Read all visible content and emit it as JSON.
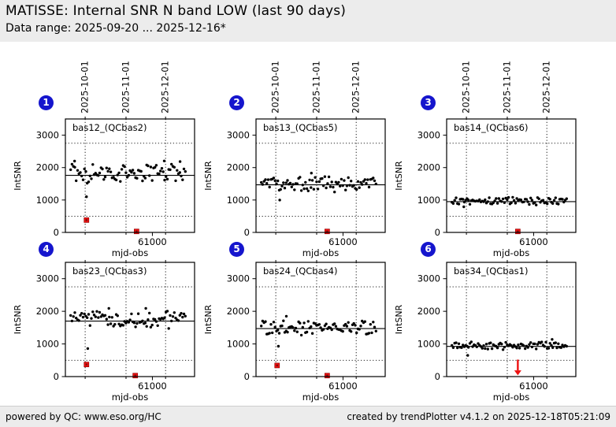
{
  "header": {
    "title": "MATISSE: Internal SNR N band LOW (last 90 days)",
    "subtitle": "Data range: 2025-09-20 ... 2025-12-16*"
  },
  "footer": {
    "left": "powered by QC: www.eso.org/HC",
    "right": "created by trendPlotter v4.1.2 on 2025-12-18T05:21:09"
  },
  "colors": {
    "page_bg": "#ffffff",
    "band_bg": "#ececec",
    "badge_blue": "#1515cd",
    "point_black": "#000000",
    "outlier_red": "#ee1111",
    "outlier_red_dark": "#7a1010",
    "axis_black": "#000000"
  },
  "chart_data": {
    "type": "scatter",
    "title": "MATISSE: Internal SNR N band LOW (last 90 days)",
    "x_axis": {
      "label": "mjd-obs",
      "domain": [
        60934,
        61032
      ],
      "tick_value": 61000,
      "tick_label": "61000",
      "data_start_mjd": 60938,
      "data_end_mjd": 61025,
      "month_lines": [
        {
          "mjd": 60949,
          "label": "2025-10-01"
        },
        {
          "mjd": 60980,
          "label": "2025-11-01"
        },
        {
          "mjd": 61010,
          "label": "2025-12-01"
        }
      ]
    },
    "y_axis": {
      "label": "IntSNR",
      "domain": [
        0,
        3500
      ],
      "ticks": [
        0,
        1000,
        2000,
        3000
      ]
    },
    "threshold_lines": [
      500,
      2750
    ],
    "gridstyle": "dotted vertical month lines, dotted horizontal thresholds, solid mean line",
    "jitter_profile": [
      0.42,
      -0.31,
      0.85,
      0.1,
      -0.66,
      0.25,
      -0.12,
      0.95,
      -0.48,
      0.05,
      0.61,
      -0.22,
      -0.88,
      0.33,
      0.74,
      -0.57,
      0.02,
      0.49,
      -0.39,
      -0.75,
      0.18,
      0.66,
      -0.09,
      0.29,
      -0.52,
      0.88,
      -0.18,
      0.38,
      -0.64,
      0.12,
      0.55,
      -0.28,
      0.79,
      -0.45,
      0.07,
      0.35,
      -0.71,
      0.22,
      0.59,
      -0.15,
      0.92,
      -0.35,
      0.03,
      0.46,
      -0.58,
      0.27,
      0.68,
      -0.05,
      -0.41,
      0.15,
      0.82,
      -0.25,
      0.51,
      -0.62,
      0.09,
      0.37,
      -0.19,
      0.72,
      -0.49,
      0.21,
      0.58,
      -0.08,
      0.31,
      -0.55,
      0.13,
      0.44,
      -0.36,
      0.65,
      -0.14,
      0.26,
      0.5,
      -0.3
    ],
    "n_points": 84,
    "plots": [
      {
        "index": "1",
        "title": "bas12_(QCbas2)",
        "mean_line": 1760,
        "scatter_center": 1800,
        "scatter_amplitude": 320,
        "stride": 7,
        "phase": 0,
        "extra_points": [
          [
            60950,
            1100
          ],
          [
            60941,
            2200
          ],
          [
            61009,
            2205
          ],
          [
            61021,
            2185
          ]
        ],
        "red_outliers": [
          [
            60950,
            380
          ],
          [
            60988,
            30
          ]
        ]
      },
      {
        "index": "2",
        "title": "bas13_(QCbas5)",
        "mean_line": 1470,
        "scatter_center": 1475,
        "scatter_amplitude": 260,
        "stride": 11,
        "phase": 5,
        "extra_points": [
          [
            60952,
            1000
          ],
          [
            60976,
            1830
          ]
        ],
        "red_outliers": [
          [
            60988,
            30
          ]
        ]
      },
      {
        "index": "3",
        "title": "bas14_(QCbas6)",
        "mean_line": 950,
        "scatter_center": 960,
        "scatter_amplitude": 130,
        "stride": 13,
        "phase": 11,
        "extra_points": [
          [
            60947,
            790
          ]
        ],
        "red_outliers": [
          [
            60988,
            30
          ]
        ]
      },
      {
        "index": "4",
        "title": "bas23_(QCbas3)",
        "mean_line": 1700,
        "scatter_center": 1730,
        "scatter_amplitude": 290,
        "stride": 5,
        "phase": 17,
        "extra_points": [
          [
            60951,
            860
          ],
          [
            60967,
            2090
          ],
          [
            60995,
            2090
          ]
        ],
        "red_outliers": [
          [
            60950,
            370
          ],
          [
            60987,
            30
          ]
        ]
      },
      {
        "index": "5",
        "title": "bas24_(QCbas4)",
        "mean_line": 1470,
        "scatter_center": 1480,
        "scatter_amplitude": 240,
        "stride": 17,
        "phase": 23,
        "extra_points": [
          [
            60951,
            930
          ],
          [
            60957,
            1850
          ]
        ],
        "red_outliers": [
          [
            60950,
            340
          ],
          [
            60988,
            30
          ]
        ]
      },
      {
        "index": "6",
        "title": "bas34_(QCbas1)",
        "mean_line": 925,
        "scatter_center": 940,
        "scatter_amplitude": 130,
        "stride": 19,
        "phase": 29,
        "extra_points": [
          [
            60950,
            650
          ],
          [
            61014,
            1140
          ]
        ],
        "red_outliers": [],
        "red_arrow": {
          "mjd": 60988,
          "from_value": 520,
          "to_value": 40
        }
      }
    ]
  }
}
